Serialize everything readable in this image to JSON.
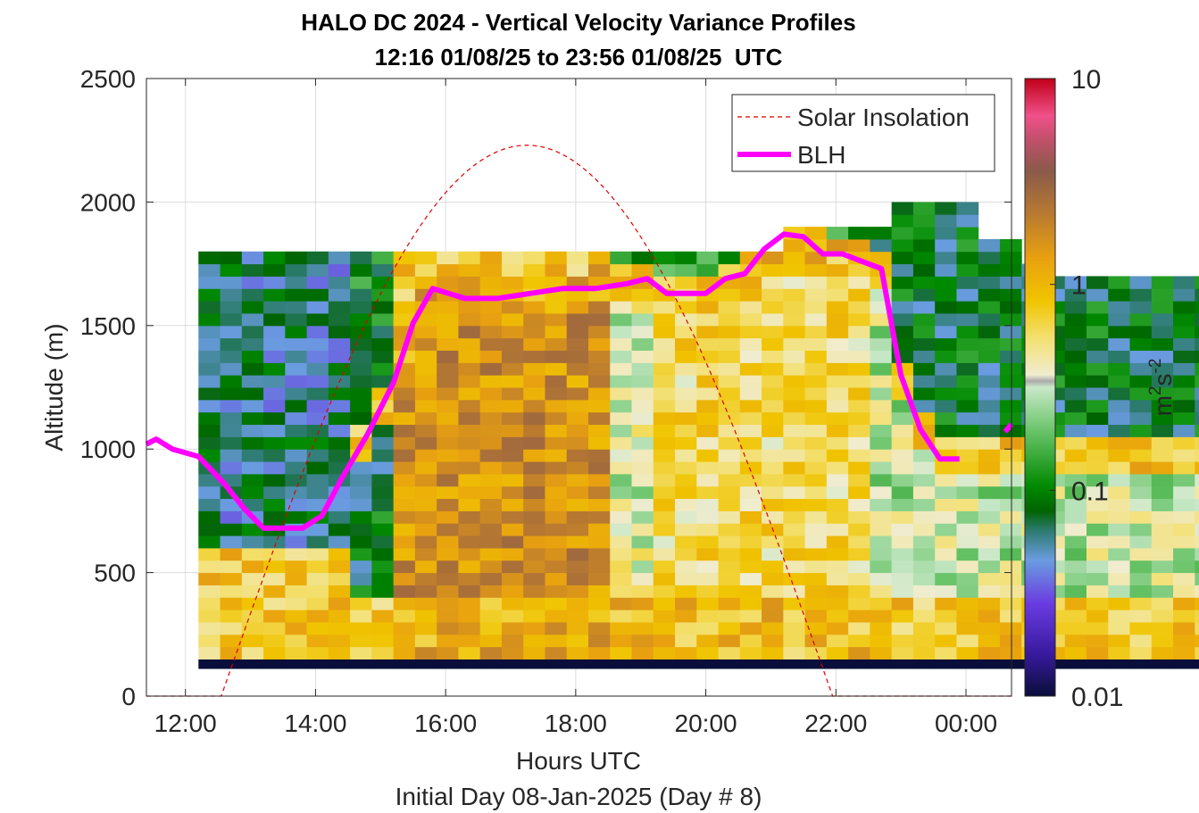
{
  "chart_data": {
    "type": "heatmap",
    "title": "HALO DC 2024 - Vertical Velocity Variance Profiles",
    "subtitle": "12:16 01/08/25 to 23:56 01/08/25  UTC",
    "xlabel": "Hours UTC",
    "xlabel2": "Initial Day 08-Jan-2025 (Day # 8)",
    "ylabel": "Altitude (m)",
    "x_unit": "hours UTC",
    "xlim": [
      11.4,
      24.7
    ],
    "ylim": [
      0,
      2500
    ],
    "x_ticks": [
      12,
      14,
      16,
      18,
      20,
      22,
      24
    ],
    "x_tick_labels": [
      "12:00",
      "14:00",
      "16:00",
      "18:00",
      "20:00",
      "22:00",
      "00:00"
    ],
    "y_ticks": [
      0,
      500,
      1000,
      1500,
      2000,
      2500
    ],
    "y_tick_labels": [
      "0",
      "500",
      "1000",
      "1500",
      "2000",
      "2500"
    ],
    "grid": true,
    "colorbar": {
      "scale": "log",
      "range": [
        0.01,
        10
      ],
      "ticks": [
        0.01,
        0.1,
        1,
        10
      ],
      "tick_labels": [
        "0.01",
        "0.1",
        "1",
        "10"
      ],
      "label": "m",
      "label_sup1": "2",
      "label_mid": "s",
      "label_sup2": "-2"
    },
    "legend": {
      "position": "top-right",
      "entries": [
        "Solar Insolation",
        "BLH"
      ]
    },
    "colors": {
      "blh": "#ff00ff",
      "solar": "#dd0000",
      "base_row": "#0a1030"
    },
    "heatmap": {
      "x_start": 12.2,
      "x_step": 0.333,
      "y_step": 50,
      "y_start": 100,
      "bottom_row_level": 0.01,
      "top_heights_m": [
        1780,
        1780,
        1780,
        1780,
        1780,
        1780,
        1780,
        1780,
        1780,
        1780,
        1780,
        1780,
        1780,
        1780,
        1780,
        1780,
        1780,
        1780,
        1780,
        1780,
        1780,
        1780,
        1780,
        1780,
        1780,
        1780,
        1780,
        1880,
        1880,
        1880,
        1880,
        1880,
        2000,
        2000,
        2000,
        2000,
        1850,
        1850,
        1750,
        1700,
        1700,
        1700,
        1700,
        1700,
        1700,
        1700,
        1700,
        1700,
        1700,
        1700
      ],
      "regimes": [
        {
          "x_end": 14.4,
          "low_mid_m": [
            600,
            1500
          ],
          "level_below": 0.8,
          "level_mid": 0.06,
          "level_top": 0.08
        },
        {
          "x_end": 15.3,
          "level_below": 0.8,
          "level_mid": 0.08,
          "level_top": 0.1
        },
        {
          "x_end": 18.5,
          "level_below": 1.1,
          "level_mid": 1.6,
          "level_top": 0.8
        },
        {
          "x_end": 19.1,
          "level_below": 1.0,
          "level_mid": 0.35,
          "level_top": 0.12
        },
        {
          "x_end": 21.1,
          "level_below": 0.9,
          "level_mid": 0.6,
          "level_top": 0.12
        },
        {
          "x_end": 22.4,
          "level_below": 0.9,
          "level_mid": 0.6,
          "level_top": 0.15
        },
        {
          "x_end": 24.0,
          "level_below": 0.8,
          "level_mid": 0.3,
          "level_top": 0.08
        }
      ]
    },
    "series": [
      {
        "name": "BLH",
        "x": [
          11.4,
          11.55,
          11.8,
          12.2,
          12.6,
          12.9,
          13.2,
          13.5,
          13.8,
          14.1,
          14.4,
          14.8,
          15.2,
          15.5,
          15.8,
          16.3,
          16.8,
          17.3,
          17.8,
          18.3,
          18.8,
          19.1,
          19.4,
          19.7,
          20.0,
          20.3,
          20.6,
          20.9,
          21.2,
          21.5,
          21.8,
          22.1,
          22.4,
          22.7,
          23.0,
          23.3,
          23.6,
          23.9,
          24.0,
          24.2
        ],
        "values": [
          1020,
          1040,
          1000,
          970,
          860,
          760,
          680,
          680,
          680,
          730,
          880,
          1060,
          1270,
          1510,
          1650,
          1610,
          1610,
          1630,
          1650,
          1650,
          1670,
          1690,
          1630,
          1630,
          1630,
          1690,
          1710,
          1810,
          1870,
          1860,
          1790,
          1790,
          1760,
          1730,
          1300,
          1080,
          960,
          960,
          null,
          null
        ]
      },
      {
        "name": "BLH",
        "x": [
          24.6,
          24.7
        ],
        "values": [
          1070,
          1100
        ]
      },
      {
        "name": "Solar Insolation",
        "type": "curve",
        "x_sunrise": 12.55,
        "x_sunset": 21.95,
        "peak_x": 17.25,
        "peak_value": 2230
      }
    ]
  }
}
